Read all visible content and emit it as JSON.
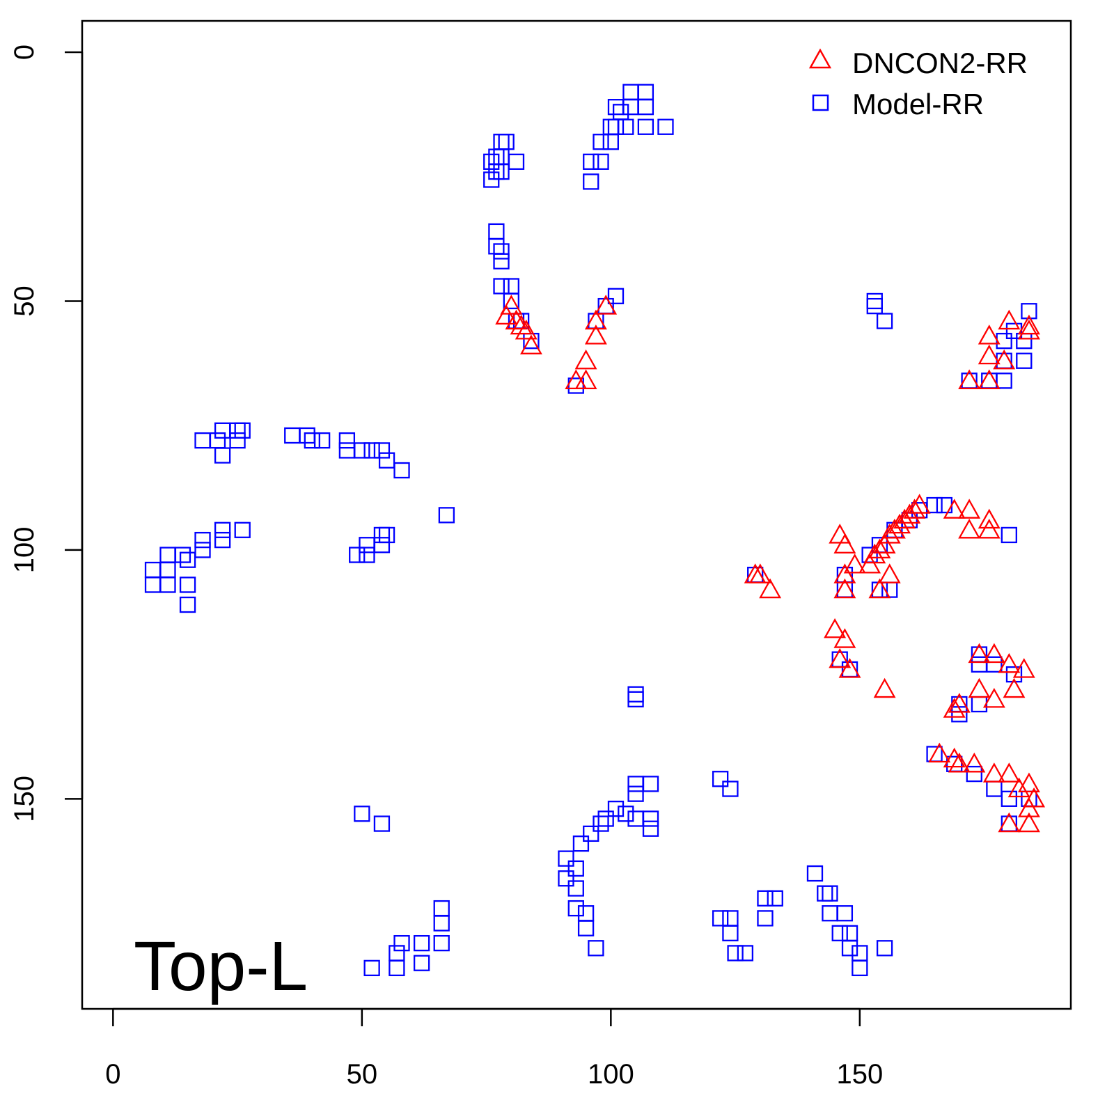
{
  "chart_data": {
    "type": "scatter",
    "title": "",
    "xlabel": "",
    "ylabel": "",
    "xlim": [
      -6.2,
      192.4
    ],
    "ylim": [
      192.2,
      -6.3
    ],
    "y_axis_inverted": true,
    "grid": false,
    "x_ticks": [
      "0",
      "50",
      "100",
      "150"
    ],
    "y_ticks": [
      "0",
      "50",
      "100",
      "150"
    ],
    "legend_position": "top-right",
    "annotation": "Top-L",
    "series": [
      {
        "name": "DNCON2-RR",
        "marker": "triangle",
        "color": "#ff0000",
        "points": [
          [
            80,
            51
          ],
          [
            79,
            53
          ],
          [
            81,
            54
          ],
          [
            82,
            55
          ],
          [
            83,
            56
          ],
          [
            84,
            59
          ],
          [
            95,
            62
          ],
          [
            95,
            66
          ],
          [
            93,
            66
          ],
          [
            97,
            54
          ],
          [
            97,
            57
          ],
          [
            99,
            51
          ],
          [
            176,
            57
          ],
          [
            180,
            54
          ],
          [
            176,
            61
          ],
          [
            176,
            66
          ],
          [
            172,
            66
          ],
          [
            179,
            62
          ],
          [
            184,
            55
          ],
          [
            184,
            56
          ],
          [
            129,
            105
          ],
          [
            130,
            105
          ],
          [
            132,
            108
          ],
          [
            146,
            97
          ],
          [
            147,
            99
          ],
          [
            147,
            105
          ],
          [
            147,
            108
          ],
          [
            149,
            103
          ],
          [
            152,
            103
          ],
          [
            153,
            101
          ],
          [
            154,
            100
          ],
          [
            155,
            99
          ],
          [
            156,
            97
          ],
          [
            157,
            96
          ],
          [
            158,
            95
          ],
          [
            159,
            94
          ],
          [
            160,
            93
          ],
          [
            161,
            92
          ],
          [
            162,
            91
          ],
          [
            156,
            105
          ],
          [
            154,
            108
          ],
          [
            169,
            92
          ],
          [
            172,
            92
          ],
          [
            172,
            96
          ],
          [
            176,
            94
          ],
          [
            176,
            96
          ],
          [
            145,
            116
          ],
          [
            147,
            118
          ],
          [
            146,
            122
          ],
          [
            148,
            124
          ],
          [
            155,
            128
          ],
          [
            174,
            121
          ],
          [
            177,
            121
          ],
          [
            180,
            123
          ],
          [
            183,
            124
          ],
          [
            174,
            128
          ],
          [
            177,
            130
          ],
          [
            181,
            128
          ],
          [
            170,
            131
          ],
          [
            169,
            132
          ],
          [
            166,
            141
          ],
          [
            169,
            142
          ],
          [
            170,
            143
          ],
          [
            173,
            143
          ],
          [
            177,
            145
          ],
          [
            180,
            145
          ],
          [
            182,
            148
          ],
          [
            184,
            147
          ],
          [
            185,
            150
          ],
          [
            184,
            152
          ],
          [
            184,
            155
          ],
          [
            180,
            155
          ]
        ]
      },
      {
        "name": "Model-RR",
        "marker": "square",
        "color": "#0000ff",
        "points": [
          [
            76,
            22
          ],
          [
            76,
            25.6
          ],
          [
            77,
            21
          ],
          [
            77,
            24
          ],
          [
            78,
            18
          ],
          [
            79,
            18
          ],
          [
            78,
            21
          ],
          [
            81,
            22
          ],
          [
            78,
            24
          ],
          [
            96,
            22
          ],
          [
            96,
            26
          ],
          [
            98,
            22
          ],
          [
            98,
            18
          ],
          [
            100,
            18
          ],
          [
            100,
            15
          ],
          [
            101,
            11
          ],
          [
            102,
            12
          ],
          [
            103,
            15
          ],
          [
            104,
            11
          ],
          [
            104,
            8
          ],
          [
            107,
            8
          ],
          [
            107,
            11
          ],
          [
            107,
            15
          ],
          [
            111,
            15
          ],
          [
            101,
            15
          ],
          [
            77,
            36
          ],
          [
            77,
            39
          ],
          [
            78,
            40
          ],
          [
            78,
            42
          ],
          [
            78,
            47
          ],
          [
            80,
            47
          ],
          [
            80,
            50
          ],
          [
            81,
            54
          ],
          [
            82,
            54
          ],
          [
            84,
            58
          ],
          [
            93,
            67
          ],
          [
            101,
            49
          ],
          [
            99,
            51
          ],
          [
            97,
            54
          ],
          [
            153,
            50
          ],
          [
            153,
            51
          ],
          [
            155,
            54
          ],
          [
            184,
            52
          ],
          [
            172,
            66
          ],
          [
            176,
            66
          ],
          [
            179,
            66
          ],
          [
            179,
            58
          ],
          [
            179,
            62
          ],
          [
            183,
            58
          ],
          [
            183,
            62
          ],
          [
            181,
            56
          ],
          [
            18,
            78
          ],
          [
            21,
            78
          ],
          [
            22,
            81
          ],
          [
            22,
            76
          ],
          [
            25,
            76
          ],
          [
            26,
            76
          ],
          [
            25,
            78
          ],
          [
            36,
            77
          ],
          [
            39,
            77
          ],
          [
            40,
            78
          ],
          [
            42,
            78
          ],
          [
            47,
            78
          ],
          [
            47,
            80
          ],
          [
            50,
            80
          ],
          [
            52,
            80
          ],
          [
            54,
            80
          ],
          [
            55,
            82
          ],
          [
            58,
            84
          ],
          [
            67,
            93
          ],
          [
            8,
            104
          ],
          [
            8,
            107
          ],
          [
            11,
            101
          ],
          [
            11,
            104
          ],
          [
            11,
            107
          ],
          [
            14,
            101
          ],
          [
            15,
            102
          ],
          [
            15,
            107
          ],
          [
            15,
            111
          ],
          [
            18,
            100
          ],
          [
            18,
            98
          ],
          [
            22,
            96
          ],
          [
            22,
            98
          ],
          [
            26,
            96
          ],
          [
            49,
            101
          ],
          [
            51,
            101
          ],
          [
            51,
            99
          ],
          [
            54,
            99
          ],
          [
            54,
            97
          ],
          [
            55,
            97
          ],
          [
            129,
            105
          ],
          [
            147,
            105
          ],
          [
            147,
            108
          ],
          [
            152,
            101
          ],
          [
            154,
            108
          ],
          [
            156,
            108
          ],
          [
            154,
            99
          ],
          [
            157,
            96
          ],
          [
            160,
            94
          ],
          [
            162,
            92
          ],
          [
            165,
            91
          ],
          [
            167,
            91
          ],
          [
            180,
            97
          ],
          [
            146,
            122
          ],
          [
            148,
            124
          ],
          [
            105,
            129
          ],
          [
            105,
            130
          ],
          [
            174,
            121
          ],
          [
            174,
            123
          ],
          [
            177,
            123
          ],
          [
            181,
            125
          ],
          [
            170,
            131
          ],
          [
            170,
            133
          ],
          [
            174,
            131
          ],
          [
            165,
            141
          ],
          [
            169,
            143
          ],
          [
            173,
            145
          ],
          [
            177,
            148
          ],
          [
            180,
            150
          ],
          [
            180,
            155
          ],
          [
            184,
            150
          ],
          [
            122,
            146
          ],
          [
            124,
            148
          ],
          [
            50,
            153
          ],
          [
            54,
            155
          ],
          [
            91,
            162
          ],
          [
            91,
            166
          ],
          [
            93,
            164
          ],
          [
            93,
            168
          ],
          [
            93,
            172
          ],
          [
            95,
            173
          ],
          [
            95,
            176
          ],
          [
            97,
            180
          ],
          [
            94,
            159
          ],
          [
            96,
            157
          ],
          [
            98,
            155
          ],
          [
            99,
            154
          ],
          [
            101,
            152
          ],
          [
            103,
            153
          ],
          [
            105,
            154
          ],
          [
            105,
            149
          ],
          [
            105,
            147
          ],
          [
            108,
            147
          ],
          [
            108,
            154
          ],
          [
            108,
            156
          ],
          [
            141,
            165
          ],
          [
            143,
            169
          ],
          [
            144,
            169
          ],
          [
            144,
            173
          ],
          [
            147,
            173
          ],
          [
            146,
            177
          ],
          [
            148,
            177
          ],
          [
            148,
            180
          ],
          [
            150,
            181
          ],
          [
            150,
            184
          ],
          [
            155,
            180
          ],
          [
            131,
            170
          ],
          [
            133,
            170
          ],
          [
            131,
            174
          ],
          [
            122,
            174
          ],
          [
            124,
            174
          ],
          [
            124,
            177
          ],
          [
            125,
            181
          ],
          [
            127,
            181
          ],
          [
            52,
            184
          ],
          [
            57,
            184
          ],
          [
            57,
            181
          ],
          [
            58,
            179
          ],
          [
            62,
            179
          ],
          [
            62,
            183
          ],
          [
            66,
            179
          ],
          [
            66,
            175
          ],
          [
            66,
            172
          ]
        ]
      }
    ]
  }
}
